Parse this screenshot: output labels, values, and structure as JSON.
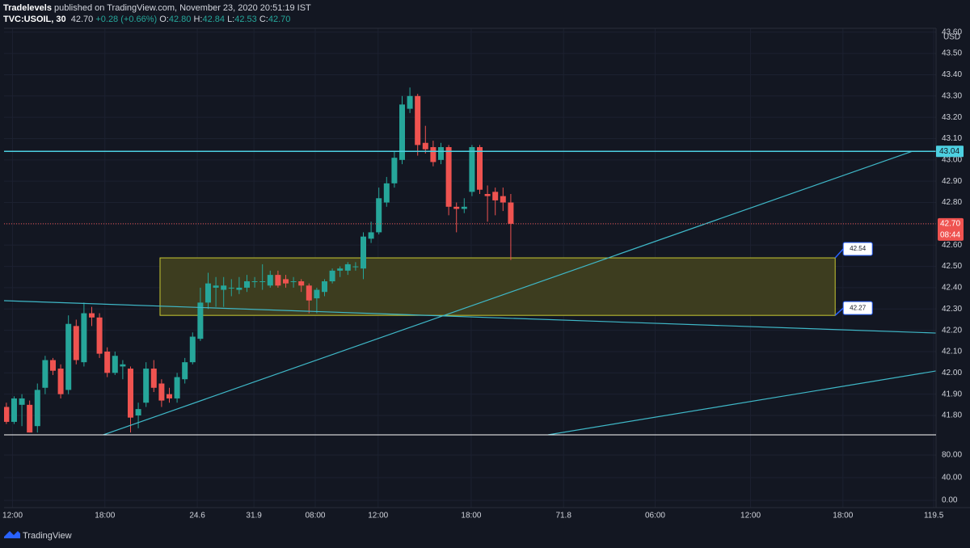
{
  "header": {
    "publisher": "Tradelevels",
    "published": "published on TradingView.com, November 23, 2020 20:51:19 IST",
    "symbol": "TVC:USOIL, 30",
    "last": "42.70",
    "change": "+0.28 (+0.66%)",
    "ohlc": [
      {
        "label": "O:",
        "value": "42.80"
      },
      {
        "label": "H:",
        "value": "42.84"
      },
      {
        "label": "L:",
        "value": "42.53"
      },
      {
        "label": "C:",
        "value": "42.70"
      }
    ]
  },
  "chart_data": [
    {
      "type": "candlestick",
      "currency": "USD",
      "up_color": "#26a69a",
      "down_color": "#ef5350",
      "grid": true,
      "open": [
        41.84,
        41.77,
        41.85,
        41.85,
        41.75,
        41.93,
        42.06,
        42.02,
        41.92,
        42.22,
        42.05,
        42.28,
        42.26,
        42.1,
        42.0,
        42.03,
        42.02,
        41.8,
        41.86,
        42.02,
        41.95,
        41.9,
        41.88,
        41.97,
        42.05,
        42.16,
        42.33,
        42.4,
        42.39,
        42.4,
        42.39,
        42.4,
        42.43,
        42.43,
        42.41,
        42.46,
        42.44,
        42.43,
        42.43,
        42.41,
        42.35,
        42.38,
        42.43,
        42.48,
        42.48,
        42.5,
        42.49,
        42.63,
        42.66,
        42.8,
        42.89,
        43.0,
        43.24,
        43.3,
        43.08,
        43.06,
        43.0,
        43.06,
        42.78,
        42.77,
        42.85,
        43.06,
        42.84,
        42.85,
        42.83,
        42.8
      ],
      "high": [
        41.86,
        41.89,
        41.9,
        41.87,
        41.95,
        42.08,
        42.07,
        42.04,
        42.27,
        42.25,
        42.33,
        42.31,
        42.28,
        42.12,
        42.1,
        42.06,
        42.03,
        41.86,
        42.05,
        42.06,
        41.97,
        41.93,
        42.0,
        42.07,
        42.19,
        42.4,
        42.47,
        42.45,
        42.45,
        42.44,
        42.45,
        42.46,
        42.45,
        42.51,
        42.48,
        42.48,
        42.46,
        42.45,
        42.44,
        42.42,
        42.4,
        42.44,
        42.49,
        42.5,
        42.52,
        42.52,
        42.66,
        42.71,
        42.87,
        42.92,
        43.04,
        43.3,
        43.34,
        43.31,
        43.16,
        43.09,
        43.08,
        43.07,
        42.8,
        42.82,
        43.07,
        43.07,
        42.88,
        42.87,
        42.87,
        42.84
      ],
      "low": [
        41.76,
        41.76,
        41.75,
        41.72,
        41.72,
        41.9,
        41.99,
        41.88,
        41.9,
        42.04,
        42.03,
        42.22,
        42.07,
        41.98,
        41.99,
        41.97,
        41.72,
        41.74,
        41.84,
        41.91,
        41.84,
        41.86,
        41.86,
        41.95,
        42.04,
        42.15,
        42.3,
        42.31,
        42.31,
        42.36,
        42.37,
        42.38,
        42.4,
        42.39,
        42.4,
        42.4,
        42.4,
        42.4,
        42.38,
        42.28,
        42.28,
        42.36,
        42.42,
        42.45,
        42.46,
        42.48,
        42.44,
        42.61,
        42.65,
        42.78,
        42.87,
        42.98,
        43.22,
        43.02,
        43.03,
        42.97,
        42.98,
        42.74,
        42.66,
        42.75,
        42.83,
        42.84,
        42.71,
        42.74,
        42.76,
        42.53
      ],
      "close": [
        41.77,
        41.88,
        41.88,
        41.72,
        41.92,
        42.06,
        42.01,
        41.9,
        42.23,
        42.06,
        42.28,
        42.26,
        42.09,
        42.0,
        42.08,
        42.04,
        41.79,
        41.83,
        42.02,
        41.93,
        41.87,
        41.88,
        41.98,
        42.05,
        42.17,
        42.33,
        42.42,
        42.41,
        42.41,
        42.4,
        42.4,
        42.43,
        42.43,
        42.43,
        42.46,
        42.41,
        42.42,
        42.43,
        42.41,
        42.34,
        42.39,
        42.43,
        42.48,
        42.49,
        42.51,
        42.5,
        42.64,
        42.66,
        42.82,
        42.89,
        43.01,
        43.26,
        43.3,
        43.07,
        43.05,
        42.99,
        43.06,
        42.78,
        42.77,
        42.78,
        43.06,
        42.86,
        42.83,
        42.81,
        42.8,
        42.7
      ],
      "xlim": [
        -0.3,
        119.8
      ],
      "ylim": [
        41.709,
        43.618
      ],
      "xticks": [
        {
          "value": 0.8,
          "label": "12:00"
        },
        {
          "value": 12.7,
          "label": "18:00"
        },
        24.6,
        31.9,
        {
          "value": 39.8,
          "label": "08:00"
        },
        {
          "value": 47.9,
          "label": "12:00"
        },
        {
          "value": 59.9,
          "label": "18:00"
        },
        71.8,
        {
          "value": 83.6,
          "label": "06:00"
        },
        {
          "value": 95.9,
          "label": "12:00"
        },
        {
          "value": 107.8,
          "label": "18:00"
        },
        119.5
      ],
      "yticks": [
        {
          "value": 43.6,
          "label": "43.60"
        },
        {
          "value": 43.5,
          "label": "43.50"
        },
        {
          "value": 43.4,
          "label": "43.40"
        },
        {
          "value": 43.3,
          "label": "43.30"
        },
        {
          "value": 43.2,
          "label": "43.20"
        },
        {
          "value": 43.1,
          "label": "43.10"
        },
        {
          "value": 43.0,
          "label": "43.00"
        },
        {
          "value": 42.9,
          "label": "42.90"
        },
        {
          "value": 42.8,
          "label": "42.80"
        },
        {
          "value": 42.7,
          "label": "42.70"
        },
        {
          "value": 42.6,
          "label": "42.60"
        },
        {
          "value": 42.5,
          "label": "42.50"
        },
        {
          "value": 42.4,
          "label": "42.40"
        },
        {
          "value": 42.3,
          "label": "42.30"
        },
        {
          "value": 42.2,
          "label": "42.20"
        },
        {
          "value": 42.1,
          "label": "42.10"
        },
        {
          "value": 42.0,
          "label": "42.00"
        },
        {
          "value": 41.9,
          "label": "41.90"
        },
        {
          "value": 41.8,
          "label": "41.80"
        }
      ],
      "level": {
        "price": 43.04,
        "color": "#4dd0e1"
      },
      "last_price": {
        "price": {
          "value": 42.7,
          "label": "42.70"
        },
        "countdown": "08:44",
        "color": "#ef5350"
      },
      "zone": {
        "top": 42.54,
        "bottom": 42.27,
        "x": [
          19.8,
          106.8
        ],
        "fill": "#3d3d1f",
        "stroke": "#c8c832"
      },
      "trendlines": [
        {
          "x": [
            12.5,
            116.7
          ],
          "y": [
            41.709,
            43.04
          ],
          "color": "#3fb8c8"
        },
        {
          "x": [
            -0.3,
            119.8
          ],
          "y": [
            42.339,
            42.187
          ],
          "color": "#3fb8c8"
        },
        {
          "x": [
            69.8,
            119.8
          ],
          "y": [
            41.709,
            42.009
          ],
          "color": "#3fb8c8"
        }
      ]
    },
    {
      "type": "oscillator",
      "ylim": [
        -12.9,
        112.9
      ],
      "yticks": [
        {
          "value": 80,
          "label": "80.00"
        },
        {
          "value": 40,
          "label": "40.00"
        },
        {
          "value": 0,
          "label": "0.00"
        }
      ]
    }
  ],
  "brand": "TradingView"
}
